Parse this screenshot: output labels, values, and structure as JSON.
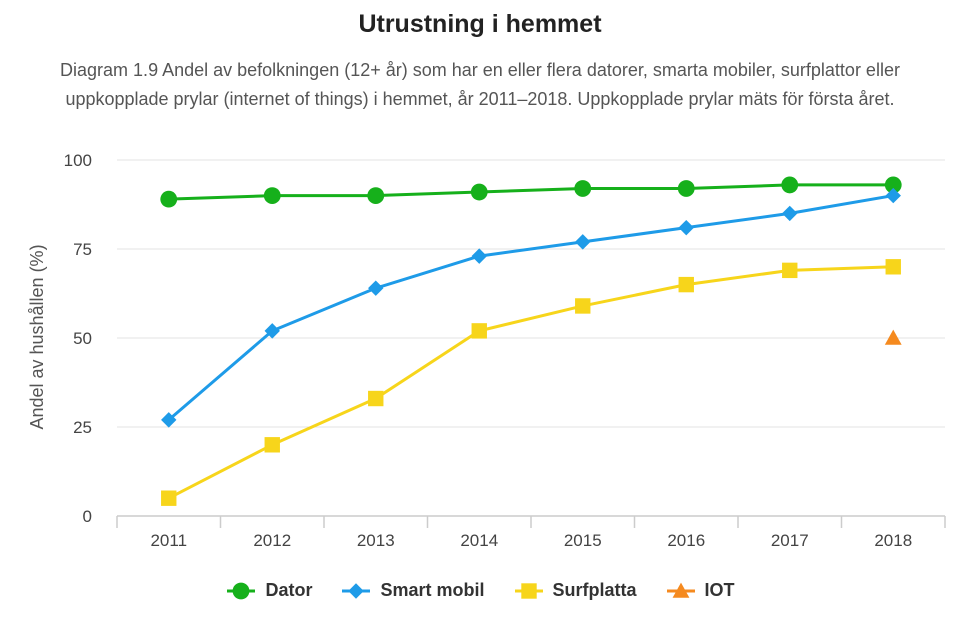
{
  "chart_data": {
    "type": "line",
    "title": "Utrustning i hemmet",
    "subtitle": "Diagram 1.9 Andel av befolkningen (12+ år) som har en eller flera datorer, smarta mobiler, surfplattor eller uppkopplade prylar (internet of things) i hemmet, år 2011–2018. Uppkopplade prylar mäts för första året.",
    "xlabel": "",
    "ylabel": "Andel av hushållen (%)",
    "categories": [
      "2011",
      "2012",
      "2013",
      "2014",
      "2015",
      "2016",
      "2017",
      "2018"
    ],
    "ylim": [
      0,
      100
    ],
    "yticks": [
      "0",
      "25",
      "50",
      "75",
      "100"
    ],
    "grid": true,
    "legend_position": "bottom-center",
    "series": [
      {
        "name": "Dator",
        "color": "#16B01B",
        "marker": "circle",
        "values": [
          89,
          90,
          90,
          91,
          92,
          92,
          93,
          93
        ]
      },
      {
        "name": "Smart mobil",
        "color": "#1E9BE8",
        "marker": "diamond",
        "values": [
          27,
          52,
          64,
          73,
          77,
          81,
          85,
          90
        ]
      },
      {
        "name": "Surfplatta",
        "color": "#F7D51B",
        "marker": "square",
        "values": [
          5,
          20,
          33,
          52,
          59,
          65,
          69,
          70
        ]
      },
      {
        "name": "IOT",
        "color": "#F58A1F",
        "marker": "triangle",
        "values": [
          null,
          null,
          null,
          null,
          null,
          null,
          null,
          50
        ]
      }
    ]
  }
}
